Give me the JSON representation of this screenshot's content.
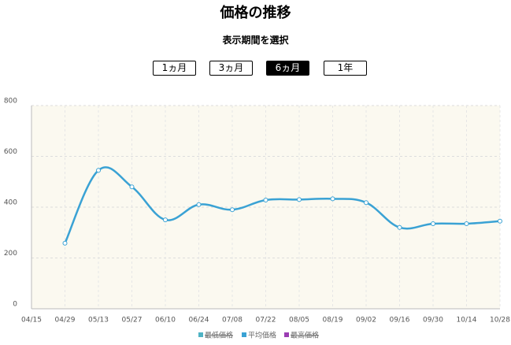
{
  "header": {
    "title": "価格の推移",
    "subtitle": "表示期間を選択"
  },
  "periods": {
    "options": [
      "1ヵ月",
      "3ヵ月",
      "6ヵ月",
      "1年"
    ],
    "selected": 2
  },
  "chart_data": {
    "type": "line",
    "categories": [
      "04/15",
      "04/29",
      "05/13",
      "05/27",
      "06/10",
      "06/24",
      "07/08",
      "07/22",
      "08/05",
      "08/19",
      "09/02",
      "09/16",
      "09/30",
      "10/14",
      "10/28"
    ],
    "series": [
      {
        "name": "最低価格",
        "color": "#4fb3c4",
        "hidden": true,
        "values": [
          null,
          null,
          null,
          null,
          null,
          null,
          null,
          null,
          null,
          null,
          null,
          null,
          null,
          null,
          null
        ]
      },
      {
        "name": "平均価格",
        "color": "#3aa2d4",
        "hidden": false,
        "values": [
          null,
          258,
          545,
          480,
          350,
          410,
          390,
          428,
          430,
          433,
          418,
          320,
          335,
          335,
          345
        ]
      },
      {
        "name": "最高価格",
        "color": "#9b3db3",
        "hidden": true,
        "values": [
          null,
          null,
          null,
          null,
          null,
          null,
          null,
          null,
          null,
          null,
          null,
          null,
          null,
          null,
          null
        ]
      }
    ],
    "ylim": [
      0,
      800
    ],
    "yticks": [
      0,
      200,
      400,
      600,
      800
    ],
    "grid": true
  }
}
